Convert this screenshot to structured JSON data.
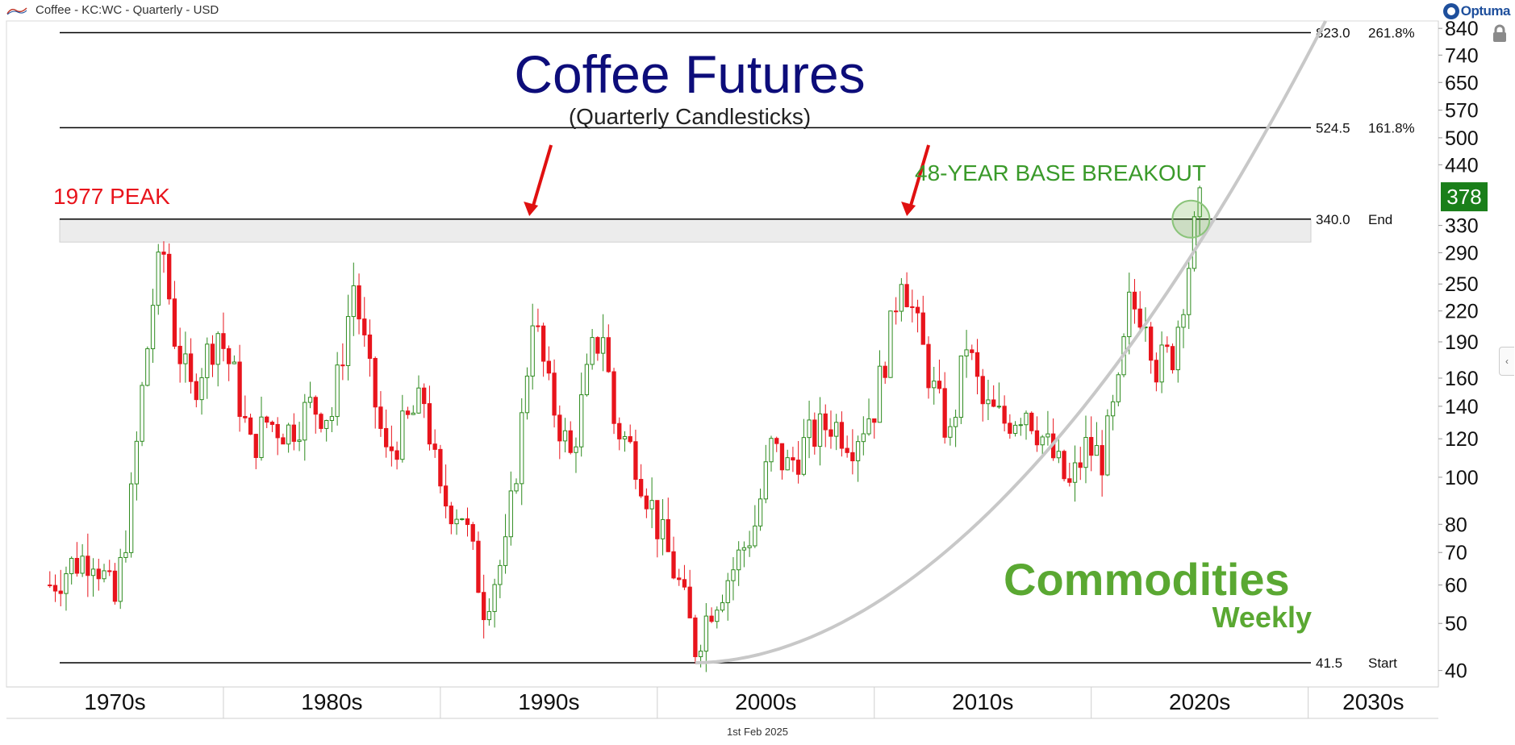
{
  "header": {
    "title": "Coffee - KC:WC - Quarterly - USD",
    "brand": "Optuma"
  },
  "footer": {
    "date": "1st Feb 2025"
  },
  "chart_data": {
    "type": "candlestick",
    "title": "Coffee Futures",
    "subtitle": "(Quarterly Candlesticks)",
    "yscale": "log",
    "ylim": [
      37,
      870
    ],
    "y_ticks": [
      40,
      50,
      60,
      70,
      80,
      100,
      120,
      140,
      160,
      190,
      220,
      250,
      290,
      330,
      440,
      500,
      570,
      650,
      740,
      840
    ],
    "last_price": 378,
    "x_decades": [
      "1970s",
      "1980s",
      "1990s",
      "2000s",
      "2010s",
      "2020s",
      "2030s"
    ],
    "xlim": [
      1970,
      2036
    ],
    "levels": [
      {
        "value": 823.0,
        "label": "823.0",
        "tag": "261.8%"
      },
      {
        "value": 524.5,
        "label": "524.5",
        "tag": "161.8%"
      },
      {
        "value": 340.0,
        "label": "340.0",
        "tag": "End"
      },
      {
        "value": 41.5,
        "label": "41.5",
        "tag": "Start"
      }
    ],
    "resistance_zone": [
      305,
      340
    ],
    "annotations": {
      "peak_label": "1977 PEAK",
      "breakout_label": "48-YEAR BASE BREAKOUT"
    },
    "colors": {
      "up": "#2e8b1f",
      "down": "#e8141c",
      "accent": "#1a7f1a",
      "title": "#0d0d7a",
      "peak": "#e8141c",
      "breakout": "#3a9a2a",
      "brand": "#5aa832"
    },
    "watermark": {
      "line1": "Commodities",
      "line2": "Weekly"
    },
    "closes": [
      {
        "t": 1972.0,
        "c": 60
      },
      {
        "t": 1973.0,
        "c": 66
      },
      {
        "t": 1974.0,
        "c": 70
      },
      {
        "t": 1975.0,
        "c": 55
      },
      {
        "t": 1975.75,
        "c": 90
      },
      {
        "t": 1976.25,
        "c": 150
      },
      {
        "t": 1976.75,
        "c": 230
      },
      {
        "t": 1977.2,
        "c": 300
      },
      {
        "t": 1977.7,
        "c": 200
      },
      {
        "t": 1978.5,
        "c": 150
      },
      {
        "t": 1979.0,
        "c": 170
      },
      {
        "t": 1979.75,
        "c": 200
      },
      {
        "t": 1980.5,
        "c": 160
      },
      {
        "t": 1981.25,
        "c": 115
      },
      {
        "t": 1982.0,
        "c": 130
      },
      {
        "t": 1983.0,
        "c": 125
      },
      {
        "t": 1984.0,
        "c": 140
      },
      {
        "t": 1985.0,
        "c": 135
      },
      {
        "t": 1986.0,
        "c": 250
      },
      {
        "t": 1986.75,
        "c": 160
      },
      {
        "t": 1987.5,
        "c": 110
      },
      {
        "t": 1988.5,
        "c": 130
      },
      {
        "t": 1989.25,
        "c": 145
      },
      {
        "t": 1990.0,
        "c": 90
      },
      {
        "t": 1991.0,
        "c": 85
      },
      {
        "t": 1992.0,
        "c": 55
      },
      {
        "t": 1993.0,
        "c": 70
      },
      {
        "t": 1993.75,
        "c": 130
      },
      {
        "t": 1994.25,
        "c": 220
      },
      {
        "t": 1995.0,
        "c": 150
      },
      {
        "t": 1996.0,
        "c": 110
      },
      {
        "t": 1997.0,
        "c": 180
      },
      {
        "t": 1997.5,
        "c": 200
      },
      {
        "t": 1998.0,
        "c": 130
      },
      {
        "t": 1999.0,
        "c": 110
      },
      {
        "t": 2000.0,
        "c": 80
      },
      {
        "t": 2001.0,
        "c": 60
      },
      {
        "t": 2001.75,
        "c": 45
      },
      {
        "t": 2002.5,
        "c": 55
      },
      {
        "t": 2003.5,
        "c": 65
      },
      {
        "t": 2004.5,
        "c": 80
      },
      {
        "t": 2005.25,
        "c": 115
      },
      {
        "t": 2006.0,
        "c": 105
      },
      {
        "t": 2007.0,
        "c": 120
      },
      {
        "t": 2008.0,
        "c": 130
      },
      {
        "t": 2009.0,
        "c": 120
      },
      {
        "t": 2010.0,
        "c": 140
      },
      {
        "t": 2010.75,
        "c": 200
      },
      {
        "t": 2011.25,
        "c": 270
      },
      {
        "t": 2012.0,
        "c": 200
      },
      {
        "t": 2012.75,
        "c": 150
      },
      {
        "t": 2013.5,
        "c": 120
      },
      {
        "t": 2014.25,
        "c": 190
      },
      {
        "t": 2015.0,
        "c": 140
      },
      {
        "t": 2016.0,
        "c": 130
      },
      {
        "t": 2017.0,
        "c": 140
      },
      {
        "t": 2018.0,
        "c": 115
      },
      {
        "t": 2019.0,
        "c": 95
      },
      {
        "t": 2019.75,
        "c": 115
      },
      {
        "t": 2020.5,
        "c": 110
      },
      {
        "t": 2021.25,
        "c": 150
      },
      {
        "t": 2021.75,
        "c": 225
      },
      {
        "t": 2022.5,
        "c": 220
      },
      {
        "t": 2023.0,
        "c": 170
      },
      {
        "t": 2023.75,
        "c": 180
      },
      {
        "t": 2024.25,
        "c": 240
      },
      {
        "t": 2024.75,
        "c": 320
      },
      {
        "t": 2025.1,
        "c": 378
      }
    ]
  }
}
